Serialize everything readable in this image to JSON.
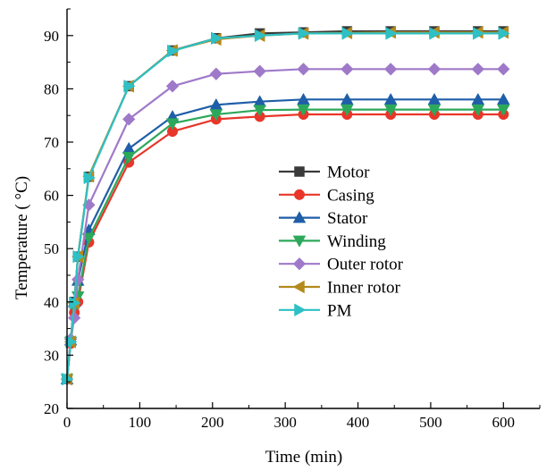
{
  "chart_data": {
    "type": "line",
    "xlabel": "Time (min)",
    "ylabel": "Temperature ( °C)",
    "xlim": [
      0,
      650
    ],
    "ylim": [
      20,
      95
    ],
    "xticks": [
      0,
      100,
      200,
      300,
      400,
      500,
      600
    ],
    "yticks": [
      20,
      30,
      40,
      50,
      60,
      70,
      80,
      90
    ],
    "grid": false,
    "legend_position": "center-right",
    "x": [
      0,
      5,
      10,
      15,
      30,
      85,
      145,
      205,
      265,
      325,
      385,
      445,
      505,
      565,
      600
    ],
    "series": [
      {
        "name": "Motor",
        "marker": "square",
        "color": "#3a3a3a",
        "values": [
          25.5,
          32.5,
          40,
          48.5,
          63.5,
          80.5,
          87.2,
          89.5,
          90.4,
          90.6,
          90.8,
          90.8,
          90.8,
          90.8,
          90.8
        ]
      },
      {
        "name": "Casing",
        "marker": "circle",
        "color": "#e8362a",
        "values": [
          25.5,
          32.2,
          38,
          40,
          51.2,
          66.2,
          72,
          74.3,
          74.8,
          75.2,
          75.2,
          75.2,
          75.2,
          75.2,
          75.2
        ]
      },
      {
        "name": "Stator",
        "marker": "triangle-up",
        "color": "#1f5ea8",
        "values": [
          25.5,
          32.8,
          40,
          44,
          53.5,
          68.8,
          74.8,
          77,
          77.6,
          78,
          78,
          78,
          78,
          78,
          78
        ]
      },
      {
        "name": "Winding",
        "marker": "triangle-down",
        "color": "#2ca85a",
        "values": [
          25.5,
          32.5,
          39,
          41,
          52,
          67.2,
          73.5,
          75.2,
          76,
          76.1,
          76.1,
          76.1,
          76.1,
          76.1,
          76.1
        ]
      },
      {
        "name": "Outer rotor",
        "marker": "diamond",
        "color": "#9f79c9",
        "values": [
          25.5,
          33,
          37,
          44.2,
          58.2,
          74.3,
          80.5,
          82.8,
          83.3,
          83.7,
          83.7,
          83.7,
          83.7,
          83.7,
          83.7
        ]
      },
      {
        "name": "Inner rotor",
        "marker": "triangle-left",
        "color": "#b38a1d",
        "values": [
          25.5,
          32.5,
          39.8,
          48.5,
          63.6,
          80.5,
          87.2,
          89.3,
          90,
          90.4,
          90.5,
          90.6,
          90.6,
          90.6,
          90.6
        ]
      },
      {
        "name": "PM",
        "marker": "triangle-right",
        "color": "#2ec0c4",
        "values": [
          25.5,
          32.5,
          39.8,
          48.5,
          63.3,
          80.5,
          87.1,
          89.5,
          90,
          90.4,
          90.4,
          90.4,
          90.4,
          90.4,
          90.4
        ]
      }
    ]
  }
}
